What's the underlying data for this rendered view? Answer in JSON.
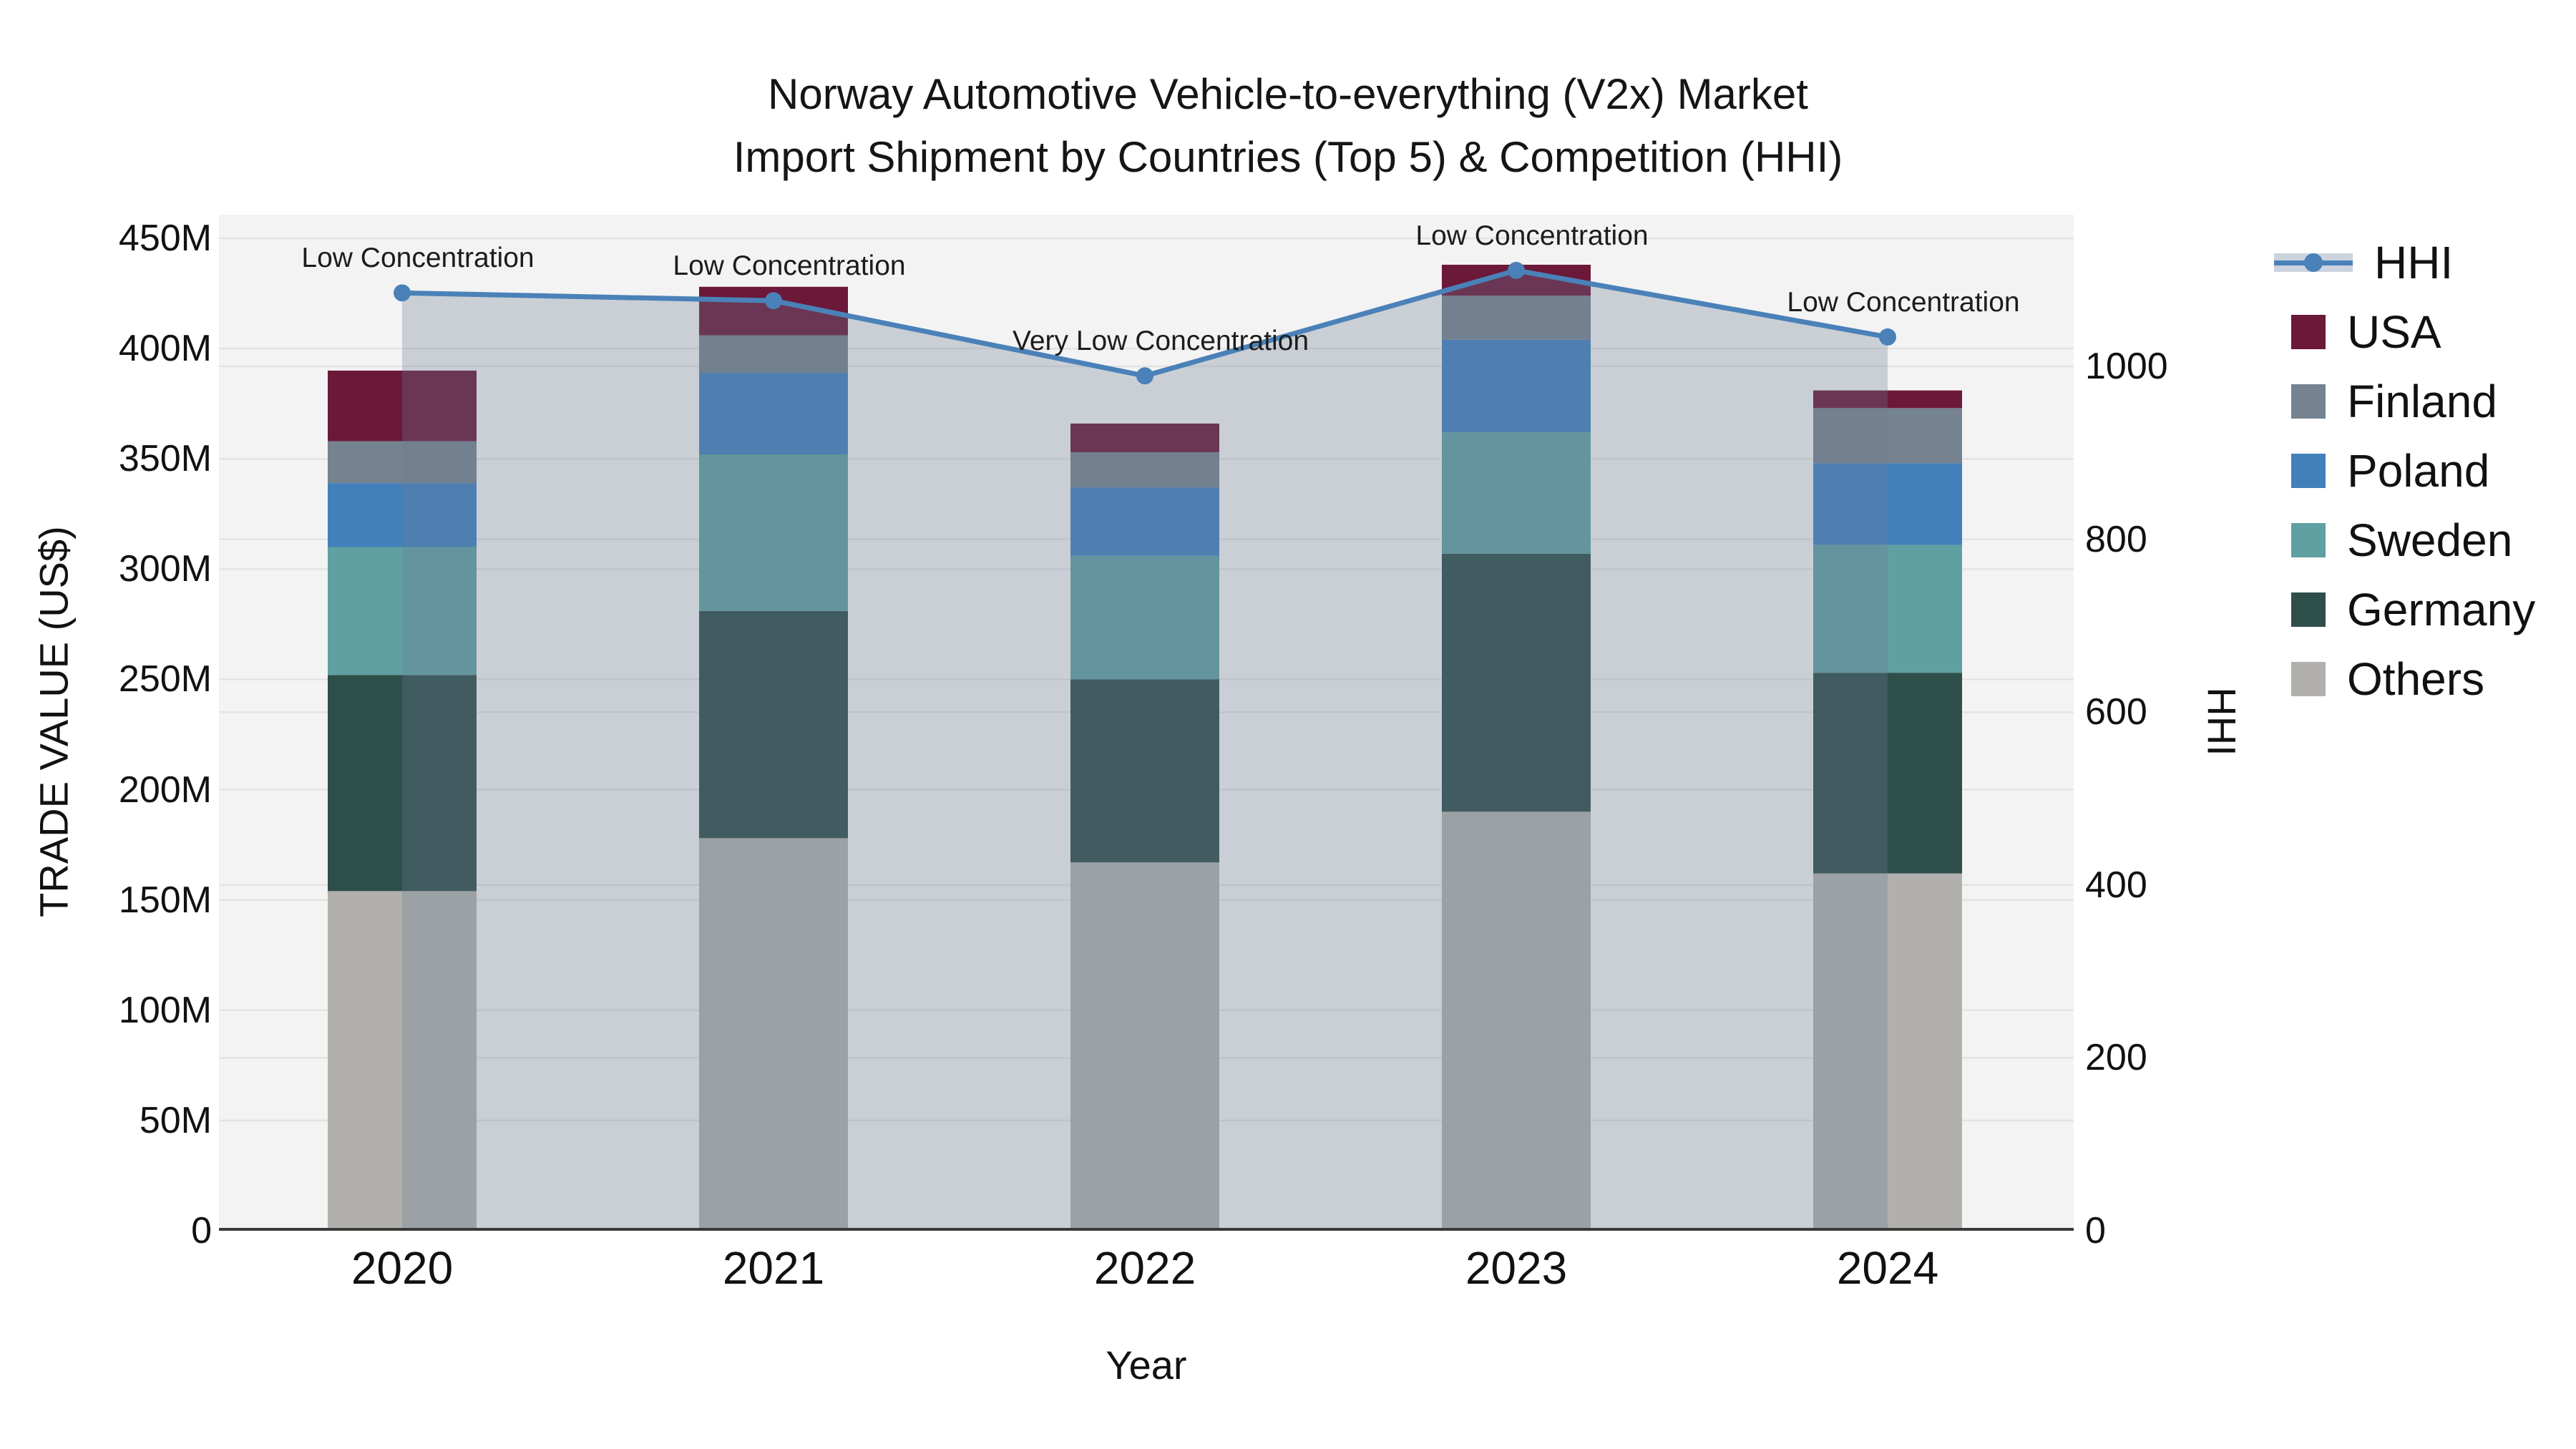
{
  "title": {
    "line1": "Norway Automotive Vehicle-to-everything (V2x) Market",
    "line2": "Import Shipment by Countries (Top 5) & Competition (HHI)"
  },
  "axes": {
    "x": {
      "label": "Year",
      "ticks": [
        "2020",
        "2021",
        "2022",
        "2023",
        "2024"
      ]
    },
    "y_left": {
      "label": "TRADE VALUE (US$)",
      "ticks": [
        "0",
        "50M",
        "100M",
        "150M",
        "200M",
        "250M",
        "300M",
        "350M",
        "400M",
        "450M"
      ]
    },
    "y_right": {
      "label": "HHI",
      "ticks": [
        "0",
        "200",
        "400",
        "600",
        "800",
        "1000"
      ]
    }
  },
  "legend": [
    "HHI",
    "USA",
    "Finland",
    "Poland",
    "Sweden",
    "Germany",
    "Others"
  ],
  "colors": {
    "hhi_line": "#4a81b8",
    "area_overlay": "rgba(110,125,150,0.30)",
    "plot_background": "#f3f3f3",
    "gridline": "#e3e3e3",
    "axis_spine": "#3a3a3a"
  },
  "chart_data": {
    "type": "bar",
    "subtype": "stacked bars with dual-axis line+area (HHI)",
    "categories": [
      "2020",
      "2021",
      "2022",
      "2023",
      "2024"
    ],
    "unit_left": "Trade value, million US$",
    "unit_right": "HHI index",
    "series": [
      {
        "name": "USA",
        "color": "#6b1839",
        "values": [
          32,
          22,
          13,
          14,
          8
        ]
      },
      {
        "name": "Finland",
        "color": "#75828f",
        "values": [
          19,
          17,
          16,
          20,
          25
        ]
      },
      {
        "name": "Poland",
        "color": "#4280bc",
        "values": [
          29,
          37,
          31,
          42,
          37
        ]
      },
      {
        "name": "Sweden",
        "color": "#60a0a2",
        "values": [
          58,
          71,
          56,
          55,
          58
        ]
      },
      {
        "name": "Germany",
        "color": "#2e4e4a",
        "values": [
          98,
          103,
          83,
          117,
          91
        ]
      },
      {
        "name": "Others",
        "color": "#b1b0ad",
        "values": [
          154,
          178,
          167,
          190,
          162
        ]
      }
    ],
    "stack_order_bottom_to_top": [
      "Others",
      "Germany",
      "Sweden",
      "Poland",
      "Finland",
      "USA"
    ],
    "bar_totals": [
      390,
      428,
      366,
      438,
      381
    ],
    "line_series": {
      "name": "HHI",
      "axis": "right",
      "color": "#4a81b8",
      "values": [
        1085,
        1076,
        989,
        1111,
        1034
      ]
    },
    "annotations": [
      {
        "category": "2020",
        "text": "Low Concentration"
      },
      {
        "category": "2021",
        "text": "Low Concentration"
      },
      {
        "category": "2022",
        "text": "Very Low Concentration"
      },
      {
        "category": "2023",
        "text": "Low Concentration"
      },
      {
        "category": "2024",
        "text": "Low Concentration"
      }
    ],
    "title": "Norway Automotive Vehicle-to-everything (V2x) Market Import Shipment by Countries (Top 5) & Competition (HHI)",
    "xlabel": "Year",
    "ylabel_left": "TRADE VALUE (US$)",
    "ylabel_right": "HHI",
    "ylim_left": [
      0,
      460
    ],
    "ylim_right": [
      0,
      1175
    ],
    "left_tick_step": "50M",
    "right_tick_step": 200,
    "grid": true,
    "legend_position": "right"
  }
}
